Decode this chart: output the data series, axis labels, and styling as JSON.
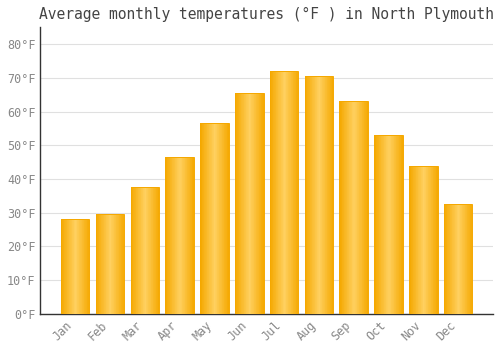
{
  "title": "Average monthly temperatures (°F ) in North Plymouth",
  "months": [
    "Jan",
    "Feb",
    "Mar",
    "Apr",
    "May",
    "Jun",
    "Jul",
    "Aug",
    "Sep",
    "Oct",
    "Nov",
    "Dec"
  ],
  "values": [
    28,
    29.5,
    37.5,
    46.5,
    56.5,
    65.5,
    72,
    70.5,
    63,
    53,
    44,
    32.5
  ],
  "bar_color_left": "#F5A800",
  "bar_color_center": "#FFD060",
  "bar_color_right": "#F5A800",
  "background_color": "#FFFFFF",
  "grid_color": "#E0E0E0",
  "text_color": "#888888",
  "title_color": "#444444",
  "ylim": [
    0,
    85
  ],
  "yticks": [
    0,
    10,
    20,
    30,
    40,
    50,
    60,
    70,
    80
  ],
  "title_fontsize": 10.5,
  "tick_fontsize": 8.5,
  "bar_width": 0.82
}
